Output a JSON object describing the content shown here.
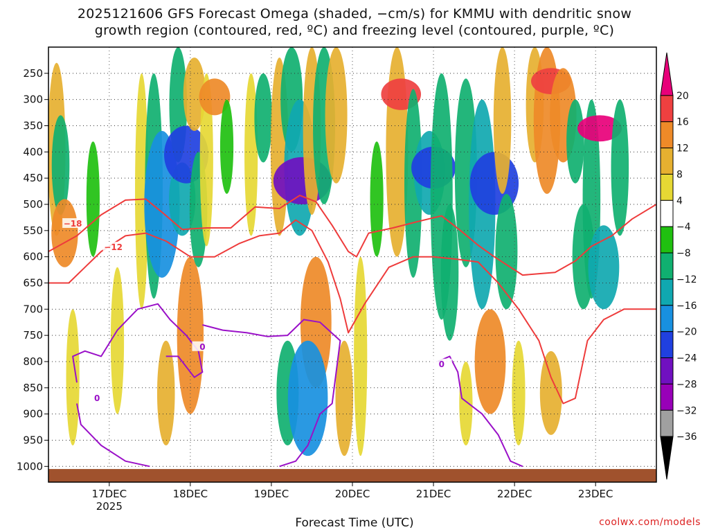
{
  "chart_data": {
    "type": "heatmap",
    "title_lines": [
      "2025121606 GFS Forecast Omega (shaded, −cm/s) for KMMU with dendritic snow",
      "growth region (contoured, red, ºC) and freezing level (contoured, purple, ºC)"
    ],
    "xlabel": "Forecast Time (UTC)",
    "credit": "coolwx.com/models",
    "x_tick_labels": [
      "17DEC",
      "18DEC",
      "19DEC",
      "20DEC",
      "21DEC",
      "22DEC",
      "23DEC"
    ],
    "x_year_label": "2025",
    "x_range_days": [
      16.25,
      23.75
    ],
    "y_ticks": [
      250,
      300,
      350,
      400,
      450,
      500,
      550,
      600,
      650,
      700,
      750,
      800,
      850,
      900,
      950,
      1000
    ],
    "y_range_hpa": [
      1030,
      200
    ],
    "colorbar": {
      "labels": [
        "20",
        "16",
        "12",
        "8",
        "4",
        "−4",
        "−8",
        "−12",
        "−16",
        "−20",
        "−24",
        "−28",
        "−32",
        "−36"
      ],
      "values": [
        20,
        16,
        12,
        8,
        4,
        -4,
        -8,
        -12,
        -16,
        -20,
        -24,
        -28,
        -32,
        -36
      ],
      "colors": [
        "#e8007a",
        "#ee4040",
        "#ee8a28",
        "#e6b030",
        "#e6d834",
        "#ffffff",
        "#20c010",
        "#10b070",
        "#10a8b0",
        "#1890e0",
        "#2040e0",
        "#7010c0",
        "#9800b8",
        "#a0a0a0",
        "#000000"
      ]
    },
    "ground_color": "#a0522d",
    "omega_cells": [
      {
        "day": 16.35,
        "p0": 230,
        "p1": 560,
        "v": 8
      },
      {
        "day": 16.4,
        "p0": 330,
        "p1": 520,
        "v": -8
      },
      {
        "day": 16.45,
        "p0": 490,
        "p1": 620,
        "v": 12
      },
      {
        "day": 16.55,
        "p0": 700,
        "p1": 960,
        "v": 6
      },
      {
        "day": 16.8,
        "p0": 380,
        "p1": 600,
        "v": -6
      },
      {
        "day": 17.1,
        "p0": 620,
        "p1": 900,
        "v": 6
      },
      {
        "day": 17.4,
        "p0": 250,
        "p1": 700,
        "v": 6
      },
      {
        "day": 17.55,
        "p0": 250,
        "p1": 680,
        "v": -8
      },
      {
        "day": 17.65,
        "p0": 360,
        "p1": 640,
        "v": -16
      },
      {
        "day": 17.7,
        "p0": 760,
        "p1": 960,
        "v": 8
      },
      {
        "day": 17.85,
        "p0": 200,
        "p1": 420,
        "v": -8
      },
      {
        "day": 17.9,
        "p0": 420,
        "p1": 560,
        "v": -12
      },
      {
        "day": 17.95,
        "p0": 350,
        "p1": 460,
        "v": -20
      },
      {
        "day": 18.0,
        "p0": 600,
        "p1": 900,
        "v": 12
      },
      {
        "day": 18.05,
        "p0": 220,
        "p1": 360,
        "v": 10
      },
      {
        "day": 18.1,
        "p0": 400,
        "p1": 620,
        "v": -8
      },
      {
        "day": 18.2,
        "p0": 250,
        "p1": 580,
        "v": 6
      },
      {
        "day": 18.3,
        "p0": 260,
        "p1": 330,
        "v": 14
      },
      {
        "day": 18.45,
        "p0": 300,
        "p1": 480,
        "v": -6
      },
      {
        "day": 18.75,
        "p0": 250,
        "p1": 560,
        "v": 6
      },
      {
        "day": 18.9,
        "p0": 250,
        "p1": 420,
        "v": -8
      },
      {
        "day": 19.1,
        "p0": 220,
        "p1": 560,
        "v": 8
      },
      {
        "day": 19.25,
        "p0": 200,
        "p1": 400,
        "v": -10
      },
      {
        "day": 19.35,
        "p0": 300,
        "p1": 560,
        "v": -14
      },
      {
        "day": 19.38,
        "p0": 410,
        "p1": 500,
        "v": -26
      },
      {
        "day": 19.5,
        "p0": 200,
        "p1": 520,
        "v": 8
      },
      {
        "day": 19.55,
        "p0": 600,
        "p1": 850,
        "v": 14
      },
      {
        "day": 19.65,
        "p0": 200,
        "p1": 500,
        "v": -10
      },
      {
        "day": 19.2,
        "p0": 760,
        "p1": 960,
        "v": -10
      },
      {
        "day": 19.45,
        "p0": 760,
        "p1": 980,
        "v": -18
      },
      {
        "day": 19.8,
        "p0": 200,
        "p1": 460,
        "v": 10
      },
      {
        "day": 19.9,
        "p0": 760,
        "p1": 980,
        "v": 8
      },
      {
        "day": 20.1,
        "p0": 600,
        "p1": 980,
        "v": 6
      },
      {
        "day": 20.3,
        "p0": 380,
        "p1": 600,
        "v": -6
      },
      {
        "day": 20.55,
        "p0": 200,
        "p1": 600,
        "v": 10
      },
      {
        "day": 20.6,
        "p0": 260,
        "p1": 320,
        "v": 18
      },
      {
        "day": 20.75,
        "p0": 280,
        "p1": 640,
        "v": -8
      },
      {
        "day": 20.95,
        "p0": 360,
        "p1": 520,
        "v": -14
      },
      {
        "day": 21.0,
        "p0": 390,
        "p1": 470,
        "v": -20
      },
      {
        "day": 21.1,
        "p0": 250,
        "p1": 720,
        "v": -10
      },
      {
        "day": 21.2,
        "p0": 500,
        "p1": 760,
        "v": -8
      },
      {
        "day": 21.4,
        "p0": 260,
        "p1": 620,
        "v": -10
      },
      {
        "day": 21.6,
        "p0": 300,
        "p1": 700,
        "v": -12
      },
      {
        "day": 21.75,
        "p0": 400,
        "p1": 520,
        "v": -22
      },
      {
        "day": 21.7,
        "p0": 700,
        "p1": 900,
        "v": 14
      },
      {
        "day": 21.85,
        "p0": 200,
        "p1": 480,
        "v": 8
      },
      {
        "day": 21.9,
        "p0": 480,
        "p1": 700,
        "v": -10
      },
      {
        "day": 22.25,
        "p0": 200,
        "p1": 420,
        "v": 8
      },
      {
        "day": 22.4,
        "p0": 200,
        "p1": 480,
        "v": 12
      },
      {
        "day": 22.45,
        "p0": 240,
        "p1": 290,
        "v": 18
      },
      {
        "day": 22.6,
        "p0": 240,
        "p1": 420,
        "v": 12
      },
      {
        "day": 22.75,
        "p0": 300,
        "p1": 460,
        "v": -8
      },
      {
        "day": 22.85,
        "p0": 500,
        "p1": 700,
        "v": -10
      },
      {
        "day": 22.95,
        "p0": 300,
        "p1": 680,
        "v": -8
      },
      {
        "day": 23.05,
        "p0": 330,
        "p1": 380,
        "v": 20
      },
      {
        "day": 23.1,
        "p0": 540,
        "p1": 700,
        "v": -14
      },
      {
        "day": 23.3,
        "p0": 300,
        "p1": 560,
        "v": -8
      },
      {
        "day": 22.05,
        "p0": 760,
        "p1": 960,
        "v": 6
      },
      {
        "day": 22.45,
        "p0": 780,
        "p1": 940,
        "v": 10
      },
      {
        "day": 21.4,
        "p0": 800,
        "p1": 960,
        "v": 6
      }
    ],
    "dgz_contours": [
      {
        "label": "−18",
        "label_day": 16.55,
        "label_p": 537,
        "points": [
          [
            16.25,
            590
          ],
          [
            16.6,
            560
          ],
          [
            16.9,
            520
          ],
          [
            17.2,
            492
          ],
          [
            17.45,
            490
          ],
          [
            17.65,
            515
          ],
          [
            17.9,
            548
          ],
          [
            18.2,
            545
          ],
          [
            18.5,
            545
          ],
          [
            18.8,
            505
          ],
          [
            19.1,
            508
          ],
          [
            19.35,
            483
          ],
          [
            19.55,
            495
          ],
          [
            19.75,
            540
          ],
          [
            19.95,
            590
          ],
          [
            20.05,
            600
          ],
          [
            20.2,
            555
          ],
          [
            20.5,
            545
          ],
          [
            20.8,
            533
          ],
          [
            21.1,
            522
          ],
          [
            21.35,
            552
          ],
          [
            21.55,
            578
          ],
          [
            21.75,
            600
          ],
          [
            22.1,
            635
          ],
          [
            22.5,
            630
          ],
          [
            22.75,
            608
          ],
          [
            22.95,
            580
          ],
          [
            23.2,
            560
          ],
          [
            23.45,
            528
          ],
          [
            23.75,
            500
          ]
        ]
      },
      {
        "label": "−12",
        "label_day": 17.05,
        "label_p": 582,
        "points": [
          [
            16.25,
            650
          ],
          [
            16.5,
            650
          ],
          [
            16.7,
            620
          ],
          [
            16.9,
            590
          ],
          [
            17.2,
            560
          ],
          [
            17.45,
            555
          ],
          [
            17.7,
            570
          ],
          [
            18.0,
            600
          ],
          [
            18.3,
            600
          ],
          [
            18.6,
            575
          ],
          [
            18.85,
            560
          ],
          [
            19.1,
            555
          ],
          [
            19.3,
            530
          ],
          [
            19.5,
            550
          ],
          [
            19.7,
            610
          ],
          [
            19.85,
            680
          ],
          [
            19.95,
            745
          ],
          [
            20.15,
            690
          ],
          [
            20.45,
            620
          ],
          [
            20.75,
            600
          ],
          [
            21.0,
            600
          ],
          [
            21.3,
            605
          ],
          [
            21.55,
            610
          ],
          [
            21.8,
            650
          ],
          [
            22.05,
            700
          ],
          [
            22.3,
            760
          ],
          [
            22.45,
            830
          ],
          [
            22.6,
            880
          ],
          [
            22.75,
            870
          ],
          [
            22.9,
            760
          ],
          [
            23.1,
            720
          ],
          [
            23.35,
            700
          ],
          [
            23.75,
            700
          ]
        ]
      }
    ],
    "freezing_contours": [
      {
        "label": "0",
        "label_day": 16.85,
        "label_p": 870,
        "points": [
          [
            16.6,
            840
          ],
          [
            16.55,
            790
          ],
          [
            16.7,
            780
          ],
          [
            16.9,
            790
          ],
          [
            17.1,
            740
          ],
          [
            17.35,
            700
          ],
          [
            17.6,
            690
          ],
          [
            17.75,
            720
          ],
          [
            17.95,
            750
          ],
          [
            18.1,
            780
          ],
          [
            18.15,
            820
          ],
          [
            18.05,
            830
          ],
          [
            17.85,
            790
          ],
          [
            17.7,
            790
          ]
        ]
      },
      {
        "label": "0",
        "label_day": 18.15,
        "label_p": 772,
        "points": [
          [
            18.15,
            730
          ],
          [
            18.4,
            740
          ],
          [
            18.7,
            745
          ],
          [
            18.95,
            752
          ],
          [
            19.2,
            750
          ],
          [
            19.4,
            720
          ],
          [
            19.6,
            725
          ],
          [
            19.85,
            760
          ],
          [
            19.75,
            880
          ],
          [
            19.6,
            900
          ],
          [
            19.45,
            960
          ],
          [
            19.3,
            990
          ],
          [
            19.1,
            1000
          ]
        ]
      },
      {
        "label": "0",
        "label_day": 21.1,
        "label_p": 805,
        "points": [
          [
            21.05,
            800
          ],
          [
            21.2,
            790
          ],
          [
            21.3,
            820
          ],
          [
            21.35,
            870
          ],
          [
            21.6,
            900
          ],
          [
            21.8,
            940
          ],
          [
            21.95,
            990
          ],
          [
            22.1,
            1000
          ]
        ]
      },
      {
        "label": "",
        "label_day": 0,
        "label_p": 0,
        "points": [
          [
            16.6,
            880
          ],
          [
            16.65,
            920
          ],
          [
            16.9,
            960
          ],
          [
            17.2,
            990
          ],
          [
            17.5,
            1000
          ]
        ]
      }
    ]
  }
}
